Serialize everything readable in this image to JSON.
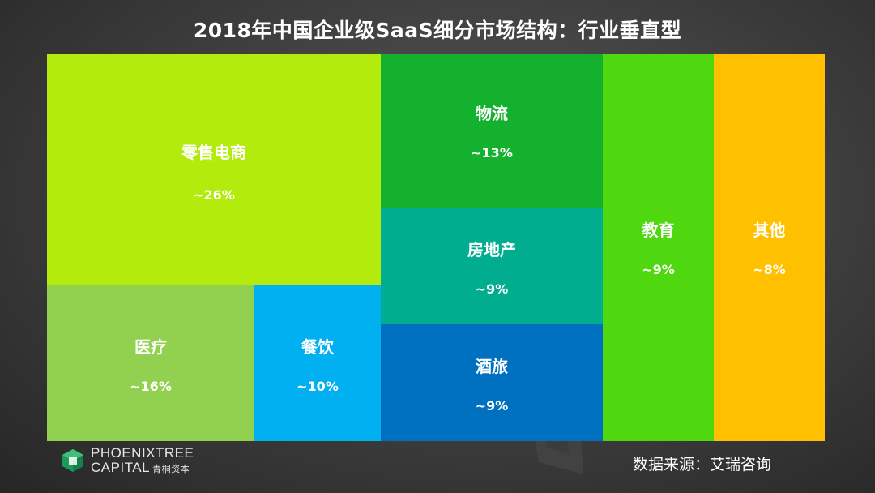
{
  "chart_data": {
    "type": "treemap",
    "title": "2018年中国企业级SaaS细分市场结构：行业垂直型",
    "series": [
      {
        "name": "零售电商",
        "label": "~26%",
        "value": 26,
        "color": "#b2eb0c"
      },
      {
        "name": "医疗",
        "label": "~16%",
        "value": 16,
        "color": "#92d150"
      },
      {
        "name": "餐饮",
        "label": "~10%",
        "value": 10,
        "color": "#00b0f0"
      },
      {
        "name": "物流",
        "label": "~13%",
        "value": 13,
        "color": "#13b12e"
      },
      {
        "name": "房地产",
        "label": "~9%",
        "value": 9,
        "color": "#00ae8f"
      },
      {
        "name": "酒旅",
        "label": "~9%",
        "value": 9,
        "color": "#0070c0"
      },
      {
        "name": "教育",
        "label": "~9%",
        "value": 9,
        "color": "#4fd80f"
      },
      {
        "name": "其他",
        "label": "~8%",
        "value": 8,
        "color": "#ffc000"
      }
    ]
  },
  "logo": {
    "line1": "PHOENIXTREE",
    "line2": "CAPITAL",
    "line2_cn": "青桐资本"
  },
  "source": "数据来源：艾瑞咨询"
}
